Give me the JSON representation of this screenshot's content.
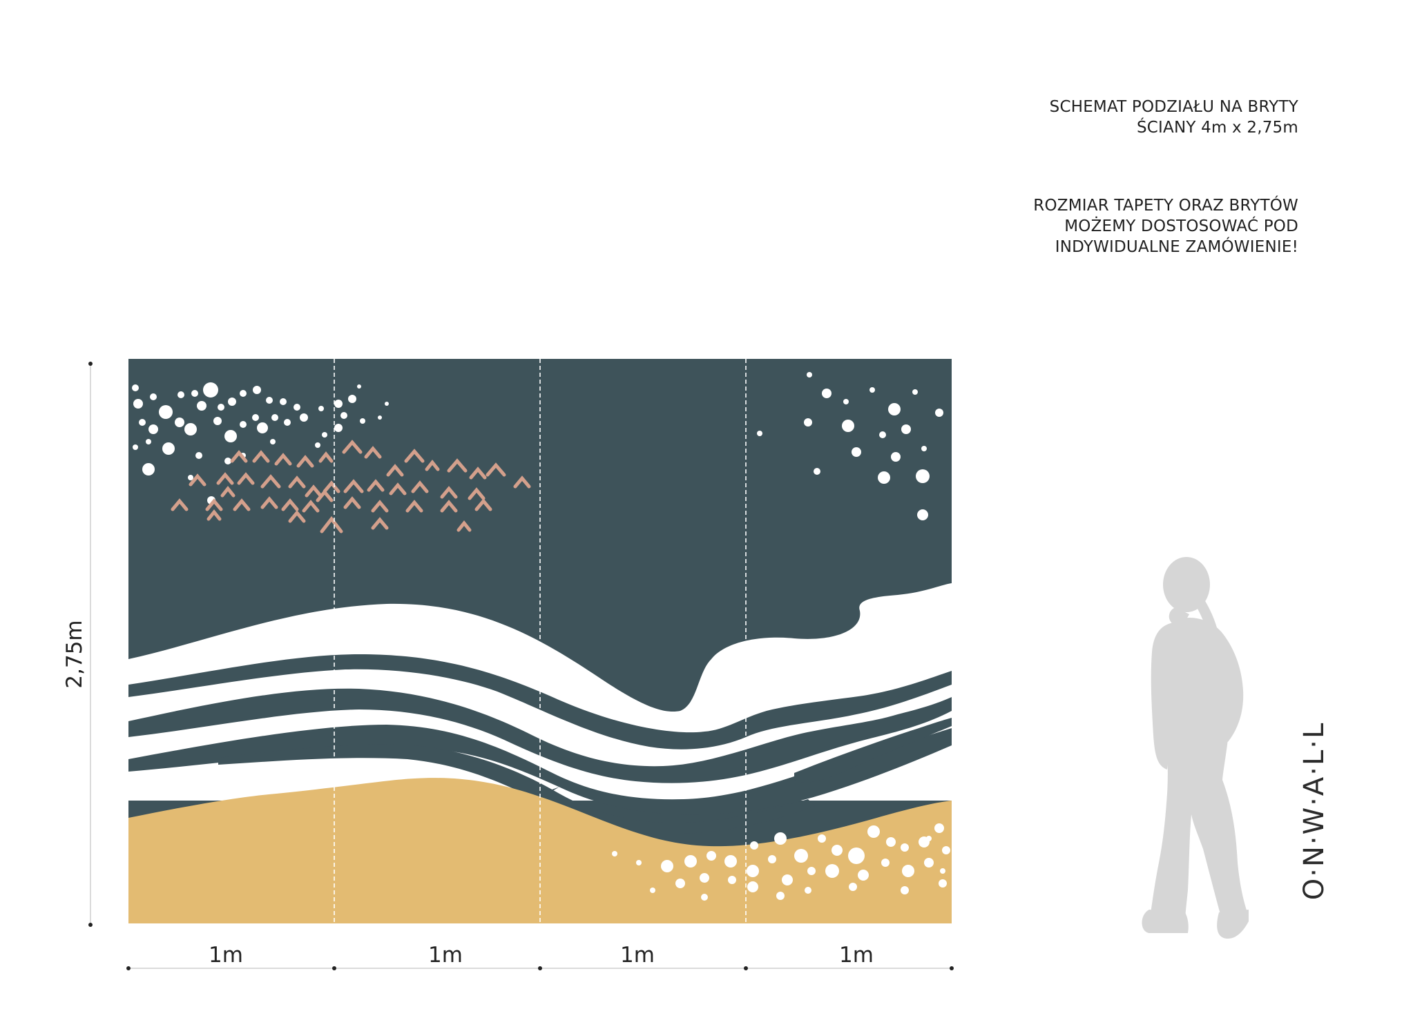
{
  "info": {
    "line1": "SCHEMAT PODZIAŁU NA BRYTY",
    "line2": "ŚCIANY 4m x 2,75m",
    "line3": "ROZMIAR TAPETY ORAZ BRYTÓW",
    "line4": "MOŻEMY DOSTOSOWAĆ POD",
    "line5": "INDYWIDUALNE ZAMÓWIENIE!"
  },
  "dimensions": {
    "height_label": "2,75m",
    "width_labels": [
      "1m",
      "1m",
      "1m",
      "1m"
    ]
  },
  "brand": {
    "name": "O·N·W·A·L·L"
  },
  "colors": {
    "sky": "#3e535a",
    "sand": "#e3bb72",
    "pink": "#d4a08c",
    "white": "#ffffff",
    "silhouette": "#d6d6d6"
  },
  "icons": {
    "person": "person-silhouette-icon"
  }
}
